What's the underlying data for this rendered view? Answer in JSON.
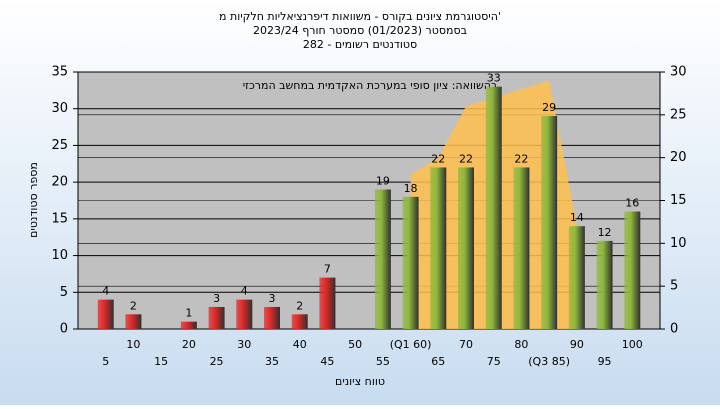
{
  "chart_data": {
    "type": "bar",
    "title": [
      "היסטוגרמת ציונים בקורס - משוואות דיפרנציאליות חלקיות מ'",
      "בסמסטר (01/2023) סמסטר חורף 2023/24",
      "סטודנטים רשומים - 282"
    ],
    "annotation": "בהשוואה: ציון סופי במערכת האקדמית במחשב המרכזי",
    "x_label": "טווח ציונים",
    "y_label": "מספר סטודנטים",
    "categories": [
      "5",
      "10",
      "15",
      "20",
      "25",
      "30",
      "35",
      "40",
      "45",
      "50",
      "55",
      "(Q1 60)",
      "65",
      "70",
      "75",
      "80",
      "(Q3 85)",
      "90",
      "95",
      "100"
    ],
    "values": [
      4,
      2,
      0,
      1,
      3,
      4,
      3,
      2,
      7,
      0,
      19,
      18,
      22,
      22,
      33,
      22,
      29,
      14,
      12,
      16
    ],
    "value_labels": [
      "4",
      "2",
      null,
      "1",
      "3",
      "4",
      "3",
      "2",
      "7",
      null,
      "19",
      "18",
      "22",
      "22",
      "33",
      "22",
      "29",
      "14",
      "12",
      "16"
    ],
    "colors": [
      "#e02828",
      "#e02828",
      "#e02828",
      "#e02828",
      "#e02828",
      "#e02828",
      "#e02828",
      "#e02828",
      "#e02828",
      "#e02828",
      "#8fb83c",
      "#8fb83c",
      "#8fb83c",
      "#8fb83c",
      "#8fb83c",
      "#8fb83c",
      "#8fb83c",
      "#8fb83c",
      "#8fb83c",
      "#8fb83c"
    ],
    "area": {
      "color": "#ffc04c",
      "axis": "y2",
      "values": [
        null,
        null,
        null,
        null,
        null,
        null,
        null,
        null,
        null,
        null,
        null,
        18,
        20,
        26,
        27,
        28,
        29,
        12,
        null,
        null
      ]
    },
    "ylim": [
      0,
      35
    ],
    "yticks": [
      0,
      5,
      10,
      15,
      20,
      25,
      30,
      35
    ],
    "y2lim": [
      0,
      30
    ],
    "y2ticks": [
      0,
      5,
      10,
      15,
      20,
      25,
      30
    ],
    "grid": true
  }
}
